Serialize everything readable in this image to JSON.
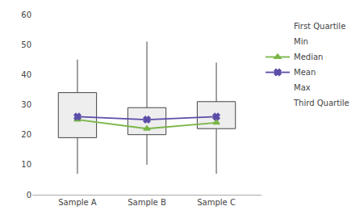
{
  "chart_data": {
    "type": "box",
    "categories": [
      "Sample A",
      "Sample B",
      "Sample C"
    ],
    "color": "#eeeeee",
    "series": [
      {
        "name": "First Quartile",
        "type": "box_bottom",
        "color": "#444444",
        "values": [
          19,
          20,
          22
        ]
      },
      {
        "name": "Min",
        "type": "whisker_bottom",
        "color": "#444444",
        "values": [
          7,
          10,
          7
        ]
      },
      {
        "name": "Median",
        "type": "line",
        "color": "#7ab648",
        "marker": "triangle-up",
        "line_style": "solid",
        "values": [
          25,
          22,
          24
        ]
      },
      {
        "name": "Mean",
        "type": "line",
        "color": "#5b4ea8",
        "marker": "x",
        "line_style": "solid",
        "values": [
          26,
          25,
          26
        ]
      },
      {
        "name": "Max",
        "type": "whisker_top",
        "color": "#444444",
        "values": [
          45,
          51,
          44
        ]
      },
      {
        "name": "Third Quartile",
        "type": "box_top",
        "color": "#444444",
        "values": [
          34,
          29,
          31
        ]
      }
    ],
    "ylim": [
      0,
      60
    ],
    "yticks": [
      0,
      10,
      20,
      30,
      40,
      50,
      60
    ],
    "grid": false,
    "legend": "right"
  }
}
